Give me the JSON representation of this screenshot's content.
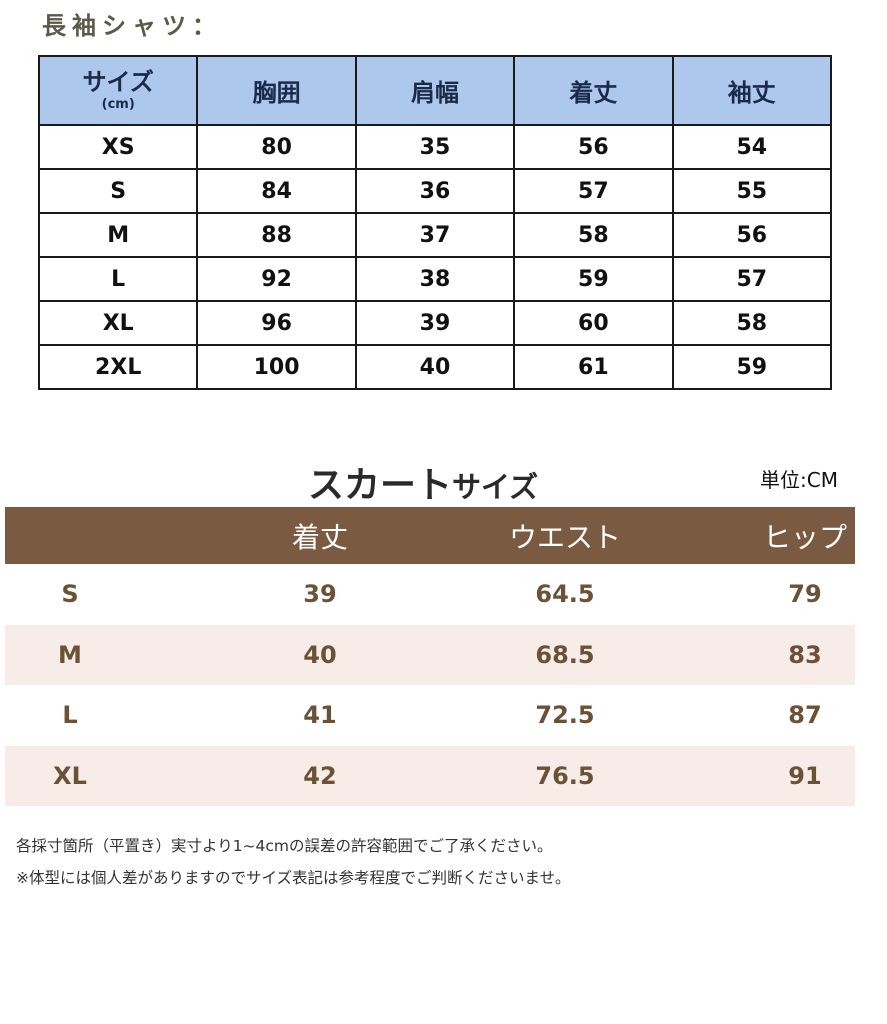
{
  "shirt": {
    "title": "長袖シャツ：",
    "header_color": "#aec7ec",
    "headers": [
      "サイズ",
      "胸囲",
      "肩幅",
      "着丈",
      "袖丈"
    ],
    "header_unit": "(cm)",
    "rows": [
      [
        "XS",
        "80",
        "35",
        "56",
        "54"
      ],
      [
        "S",
        "84",
        "36",
        "57",
        "55"
      ],
      [
        "M",
        "88",
        "37",
        "58",
        "56"
      ],
      [
        "L",
        "92",
        "38",
        "59",
        "57"
      ],
      [
        "XL",
        "96",
        "39",
        "60",
        "58"
      ],
      [
        "2XL",
        "100",
        "40",
        "61",
        "59"
      ]
    ]
  },
  "skirt": {
    "title_big": "スカート",
    "title_small": "サイズ",
    "unit": "単位:CM",
    "header_color": "#7a5b42",
    "row_alt_color": "#f8ece8",
    "headers": [
      "",
      "着丈",
      "ウエスト",
      "ヒップ"
    ],
    "rows": [
      [
        "S",
        "39",
        "64.5",
        "79"
      ],
      [
        "M",
        "40",
        "68.5",
        "83"
      ],
      [
        "L",
        "41",
        "72.5",
        "87"
      ],
      [
        "XL",
        "42",
        "76.5",
        "91"
      ]
    ]
  },
  "notes": [
    "各採寸箇所（平置き）実寸より1~4cmの誤差の許容範囲でご了承ください。",
    "※体型には個人差がありますのでサイズ表記は参考程度でご判断くださいませ。"
  ]
}
